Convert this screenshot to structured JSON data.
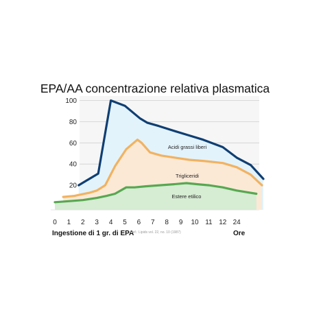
{
  "chart_data": {
    "type": "area",
    "title": "EPA/AA concentrazione relativa plasmatica",
    "xlabel": "Ingestione di 1 gr. di EPA",
    "xunit": "Ore",
    "reference": "Ref.: Lipids vol. 22, no. 10 (1987)",
    "ylim": [
      0,
      110
    ],
    "y_ticks": [
      "20",
      "40",
      "60",
      "80",
      "100"
    ],
    "x_ticks": [
      "0",
      "1",
      "2",
      "3",
      "4",
      "5",
      "6",
      "7",
      "8",
      "9",
      "10",
      "11",
      "12",
      "24"
    ],
    "grid": true,
    "series": [
      {
        "name": "Acidi grassi liberi",
        "color": "#0f3f73",
        "fill": "#e3f3fb",
        "points": [
          [
            1.7,
            20
          ],
          [
            3.1,
            31
          ],
          [
            4,
            100
          ],
          [
            5,
            95
          ],
          [
            6.1,
            83
          ],
          [
            6.6,
            79
          ],
          [
            7.4,
            76
          ],
          [
            8.6,
            71
          ],
          [
            9.6,
            67
          ],
          [
            10.6,
            63
          ],
          [
            12,
            56
          ],
          [
            13,
            46
          ],
          [
            14,
            39
          ],
          [
            14.9,
            26
          ]
        ]
      },
      {
        "name": "Trigliceridi",
        "color": "#f2b260",
        "fill": "#fbe9d6",
        "points": [
          [
            0.6,
            9
          ],
          [
            1.4,
            10
          ],
          [
            2.5,
            13
          ],
          [
            3,
            15
          ],
          [
            3.6,
            20
          ],
          [
            4.3,
            38
          ],
          [
            5.1,
            54
          ],
          [
            5.9,
            63
          ],
          [
            6.2,
            60
          ],
          [
            6.8,
            51
          ],
          [
            7.6,
            48
          ],
          [
            8.6,
            46
          ],
          [
            9.6,
            44
          ],
          [
            10.6,
            43
          ],
          [
            12,
            41
          ],
          [
            13,
            37
          ],
          [
            14,
            30
          ],
          [
            14.8,
            20
          ]
        ]
      },
      {
        "name": "Estere etilico",
        "color": "#57a851",
        "fill": "#d6ecd3",
        "points": [
          [
            0,
            4
          ],
          [
            1,
            5
          ],
          [
            2,
            6
          ],
          [
            3,
            8
          ],
          [
            3.7,
            10
          ],
          [
            4.3,
            12
          ],
          [
            5.1,
            18
          ],
          [
            5.7,
            18
          ],
          [
            6.5,
            19
          ],
          [
            7.5,
            20
          ],
          [
            8.5,
            21
          ],
          [
            9.4,
            22
          ],
          [
            10.2,
            21
          ],
          [
            11,
            20
          ],
          [
            12,
            18
          ],
          [
            13,
            15
          ],
          [
            14.4,
            12
          ]
        ]
      }
    ]
  }
}
